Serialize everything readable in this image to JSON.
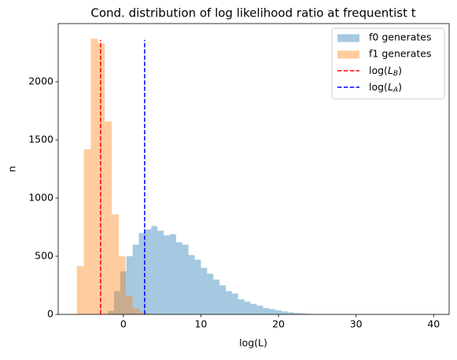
{
  "chart_data": {
    "type": "histogram",
    "title": "Cond. distribution of log likelihood ratio at frequentist  t",
    "x_label": "log(L)",
    "y_label": "n",
    "xlim": [
      -8.4,
      42.0
    ],
    "ylim": [
      0,
      2500
    ],
    "xticks": [
      0,
      10,
      20,
      30,
      40
    ],
    "yticks": [
      0,
      500,
      1000,
      1500,
      2000
    ],
    "legend_position": "upper right",
    "series": [
      {
        "name": "f0 generates",
        "color": "#1f77b4",
        "opacity": 0.4,
        "bins": [
          -2.0,
          -1.2,
          -0.4,
          0.4,
          1.2,
          2.0,
          2.8,
          3.6,
          4.4,
          5.2,
          6.0,
          6.8,
          7.6,
          8.4,
          9.2,
          10.0,
          10.8,
          11.6,
          12.4,
          13.2,
          14.0,
          14.8,
          15.6,
          16.4,
          17.2,
          18.0,
          18.8,
          19.6,
          20.4,
          21.2,
          22.0,
          22.8,
          23.6,
          24.4,
          25.2,
          26.0
        ],
        "values": [
          30,
          200,
          370,
          500,
          600,
          700,
          730,
          760,
          720,
          680,
          690,
          620,
          600,
          510,
          470,
          400,
          350,
          300,
          250,
          200,
          180,
          130,
          110,
          90,
          75,
          55,
          45,
          35,
          25,
          18,
          12,
          8,
          5,
          3,
          2
        ]
      },
      {
        "name": "f1 generates",
        "color": "#ff7f0e",
        "opacity": 0.4,
        "bins": [
          -6.0,
          -5.1,
          -4.2,
          -3.3,
          -2.4,
          -1.5,
          -0.6,
          0.3,
          1.2,
          2.1,
          3.0,
          3.9,
          4.8
        ],
        "values": [
          415,
          1420,
          2370,
          2330,
          1660,
          860,
          500,
          160,
          50,
          15,
          5,
          2
        ]
      }
    ],
    "vlines": [
      {
        "name": "log(LB)",
        "color": "#ff0000",
        "x": -2.94,
        "ymax": 2360
      },
      {
        "name": "log(LA)",
        "color": "#0000ff",
        "x": 2.74,
        "ymax": 2360
      }
    ]
  }
}
